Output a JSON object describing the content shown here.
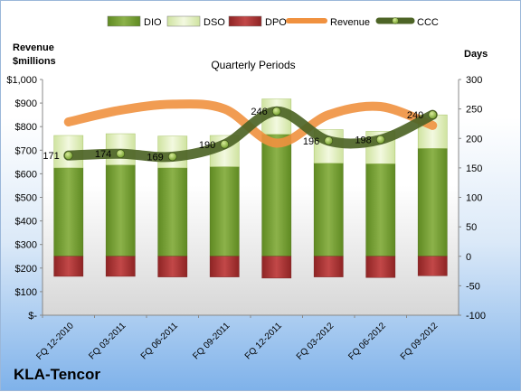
{
  "company": "KLA-Tencor",
  "chart_data": {
    "type": "bar",
    "title": "Quarterly Periods",
    "left_axis_label_line1": "Revenue",
    "left_axis_label_line2": "$millions",
    "right_axis_label": "Days",
    "categories": [
      "FQ 12-2010",
      "FQ 03-2011",
      "FQ 06-2011",
      "FQ 09-2011",
      "FQ 12-2011",
      "FQ 03-2012",
      "FQ 06-2012",
      "FQ 09-2012"
    ],
    "left_axis": {
      "min": 0,
      "max": 1000,
      "step": 100,
      "tick_labels": [
        "$-",
        "$100",
        "$200",
        "$300",
        "$400",
        "$500",
        "$600",
        "$700",
        "$800",
        "$900",
        "$1,000"
      ]
    },
    "right_axis": {
      "min": -100,
      "max": 300,
      "step": 50,
      "tick_labels": [
        "-100",
        "-50",
        "0",
        "50",
        "100",
        "150",
        "200",
        "250",
        "300"
      ]
    },
    "series": [
      {
        "name": "DIO",
        "type": "stacked-bar",
        "axis": "right",
        "color": "#7fa33a",
        "values": [
          150,
          155,
          150,
          152,
          207,
          158,
          157,
          183
        ]
      },
      {
        "name": "DSO",
        "type": "stacked-bar",
        "axis": "right",
        "color": "#e6f2c6",
        "values": [
          55,
          53,
          54,
          53,
          60,
          57,
          55,
          57
        ]
      },
      {
        "name": "DPO",
        "type": "stacked-bar",
        "axis": "right",
        "color": "#b53a3a",
        "values": [
          -34,
          -34,
          -35,
          -35,
          -37,
          -35,
          -36,
          -33
        ]
      },
      {
        "name": "Revenue",
        "type": "line",
        "axis": "left",
        "color": "#f0913f",
        "values": [
          820,
          870,
          895,
          875,
          730,
          850,
          885,
          805
        ]
      },
      {
        "name": "CCC",
        "type": "line",
        "axis": "right",
        "color": "#556b2f",
        "values": [
          171,
          174,
          169,
          190,
          246,
          196,
          198,
          240
        ],
        "data_labels": [
          "171",
          "174",
          "169",
          "190",
          "246",
          "196",
          "198",
          "240"
        ]
      }
    ],
    "legend": {
      "position": "top",
      "entries": [
        "DIO",
        "DSO",
        "DPO",
        "Revenue",
        "CCC"
      ]
    },
    "grid": false
  }
}
